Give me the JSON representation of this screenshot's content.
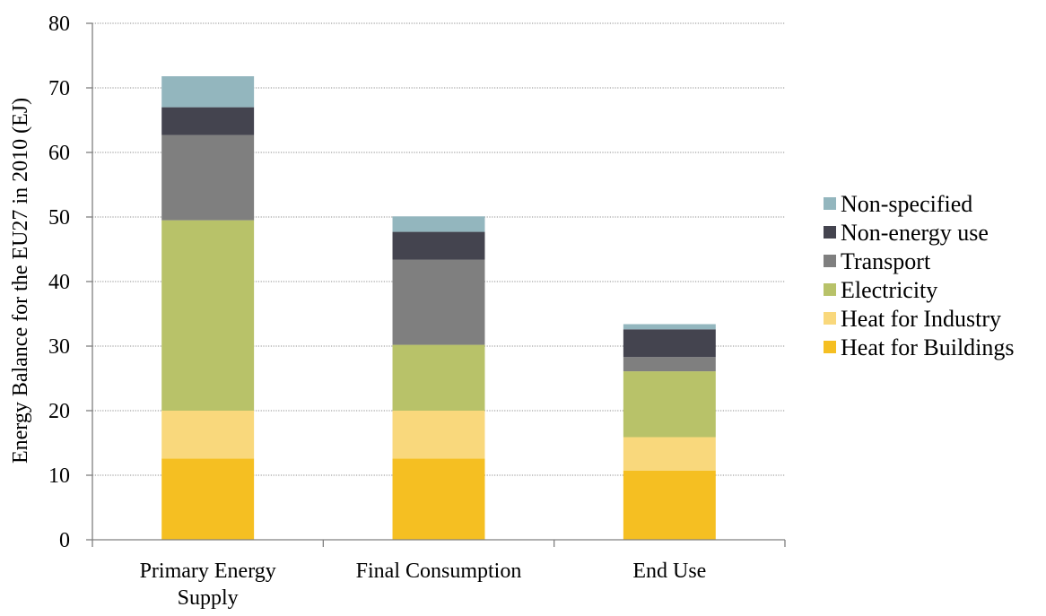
{
  "chart_data": {
    "type": "bar",
    "stacked": true,
    "title": "",
    "xlabel": "",
    "ylabel": "Energy Balance for the EU27 in 2010 (EJ)",
    "ylim": [
      0,
      80
    ],
    "yticks": [
      0,
      10,
      20,
      30,
      40,
      50,
      60,
      70,
      80
    ],
    "grid": true,
    "legend_position": "right",
    "categories": [
      [
        "Primary Energy",
        "Supply"
      ],
      [
        "Final Consumption"
      ],
      [
        "End Use"
      ]
    ],
    "series": [
      {
        "name": "Heat for Buildings",
        "color": "#f5bf22",
        "values": [
          12.6,
          12.6,
          10.7
        ]
      },
      {
        "name": "Heat for Industry",
        "color": "#f9d87c",
        "values": [
          7.4,
          7.4,
          5.2
        ]
      },
      {
        "name": "Electricity",
        "color": "#b8c269",
        "values": [
          29.5,
          10.2,
          10.2
        ]
      },
      {
        "name": "Transport",
        "color": "#7f7f7f",
        "values": [
          13.2,
          13.2,
          2.2
        ]
      },
      {
        "name": "Non-energy use",
        "color": "#44444f",
        "values": [
          4.3,
          4.3,
          4.3
        ]
      },
      {
        "name": "Non-specified",
        "color": "#93b6be",
        "values": [
          4.8,
          2.4,
          0.8
        ]
      }
    ]
  }
}
